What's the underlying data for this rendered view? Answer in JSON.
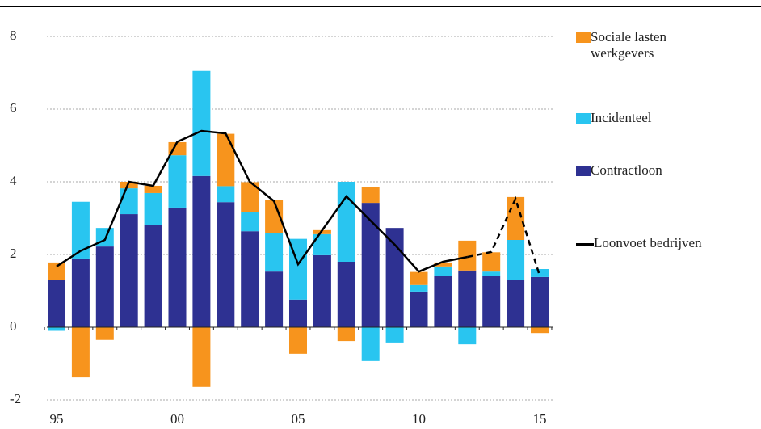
{
  "chart_data": {
    "type": "stacked-bar-line",
    "categories": [
      "95",
      null,
      null,
      null,
      null,
      "00",
      null,
      null,
      null,
      null,
      "05",
      null,
      null,
      null,
      null,
      "10",
      null,
      null,
      null,
      null,
      "15"
    ],
    "series": [
      {
        "name": "Contractloon",
        "color": "#2e3192",
        "values": [
          1.31,
          1.89,
          2.22,
          3.11,
          2.82,
          3.29,
          4.16,
          3.44,
          2.64,
          1.53,
          0.76,
          1.98,
          1.8,
          3.42,
          2.73,
          0.98,
          1.4,
          1.56,
          1.4,
          1.29,
          1.38
        ]
      },
      {
        "name": "Incidenteel",
        "color": "#29c5f0",
        "values": [
          -0.1,
          1.56,
          0.51,
          0.71,
          0.87,
          1.44,
          2.89,
          0.44,
          0.53,
          1.07,
          1.67,
          0.58,
          2.2,
          -0.93,
          -0.42,
          0.18,
          0.27,
          -0.47,
          0.13,
          1.11,
          0.22
        ]
      },
      {
        "name": "Sociale lasten werkgevers",
        "color": "#f7941d",
        "values": [
          0.47,
          -1.38,
          -0.35,
          0.18,
          0.2,
          0.36,
          -1.64,
          1.44,
          0.82,
          0.89,
          -0.73,
          0.11,
          -0.38,
          0.44,
          0,
          0.36,
          0.11,
          0.82,
          0.53,
          1.18,
          -0.16
        ]
      }
    ],
    "line": {
      "name": "Loonvoet bedrijven",
      "color": "#000000",
      "dash_from_index": 17,
      "values": [
        1.67,
        2.1,
        2.4,
        4.0,
        3.89,
        5.1,
        5.4,
        5.33,
        4.0,
        3.47,
        1.73,
        2.67,
        3.6,
        2.93,
        2.27,
        1.53,
        1.8,
        1.93,
        2.07,
        3.53,
        1.42
      ]
    },
    "ylim": [
      -2,
      8
    ],
    "yticks": [
      -2,
      0,
      2,
      4,
      6,
      8
    ],
    "grid": true
  }
}
